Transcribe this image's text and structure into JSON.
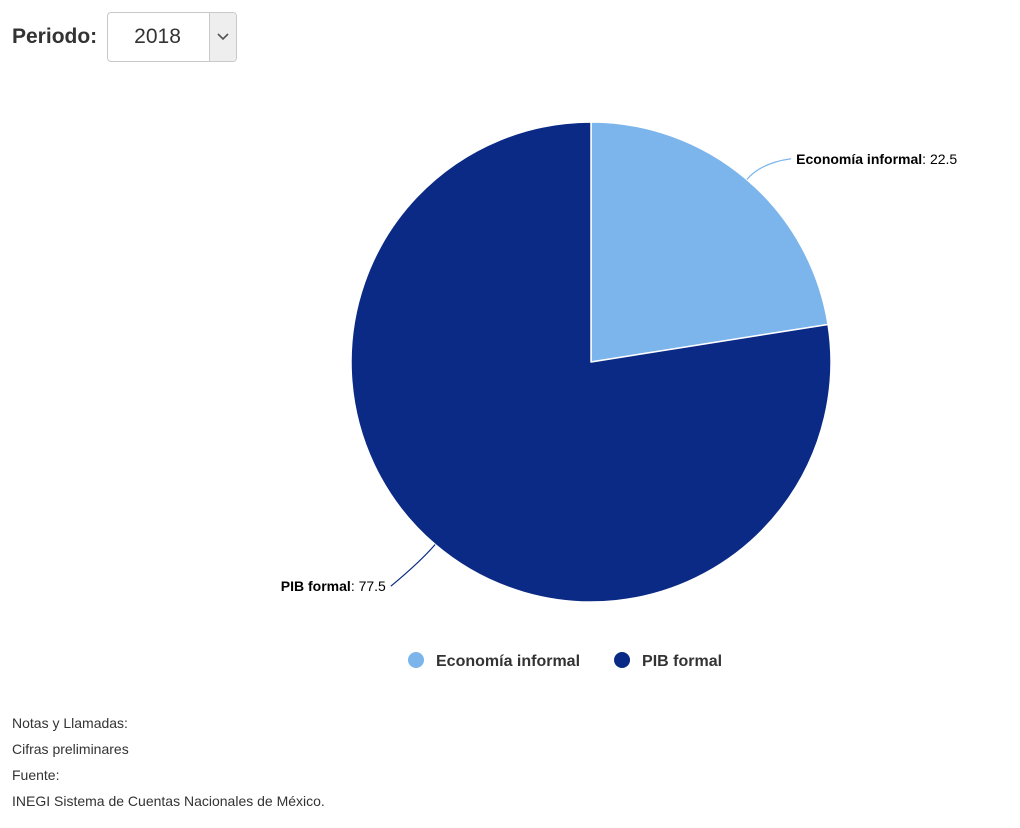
{
  "period": {
    "label": "Periodo:",
    "selected": "2018"
  },
  "chart_data": {
    "type": "pie",
    "title": "",
    "slices": [
      {
        "name": "Economía informal",
        "value": 22.5,
        "color": "#7cb5ec"
      },
      {
        "name": "PIB formal",
        "value": 77.5,
        "color": "#0b2a85"
      }
    ],
    "data_labels": true,
    "legend": "bottom-center",
    "start_angle_deg": 0,
    "direction": "clockwise"
  },
  "notes": {
    "heading": "Notas y Llamadas:",
    "note": "Cifras preliminares",
    "source_heading": "Fuente:",
    "source": "INEGI Sistema de Cuentas Nacionales de México."
  }
}
